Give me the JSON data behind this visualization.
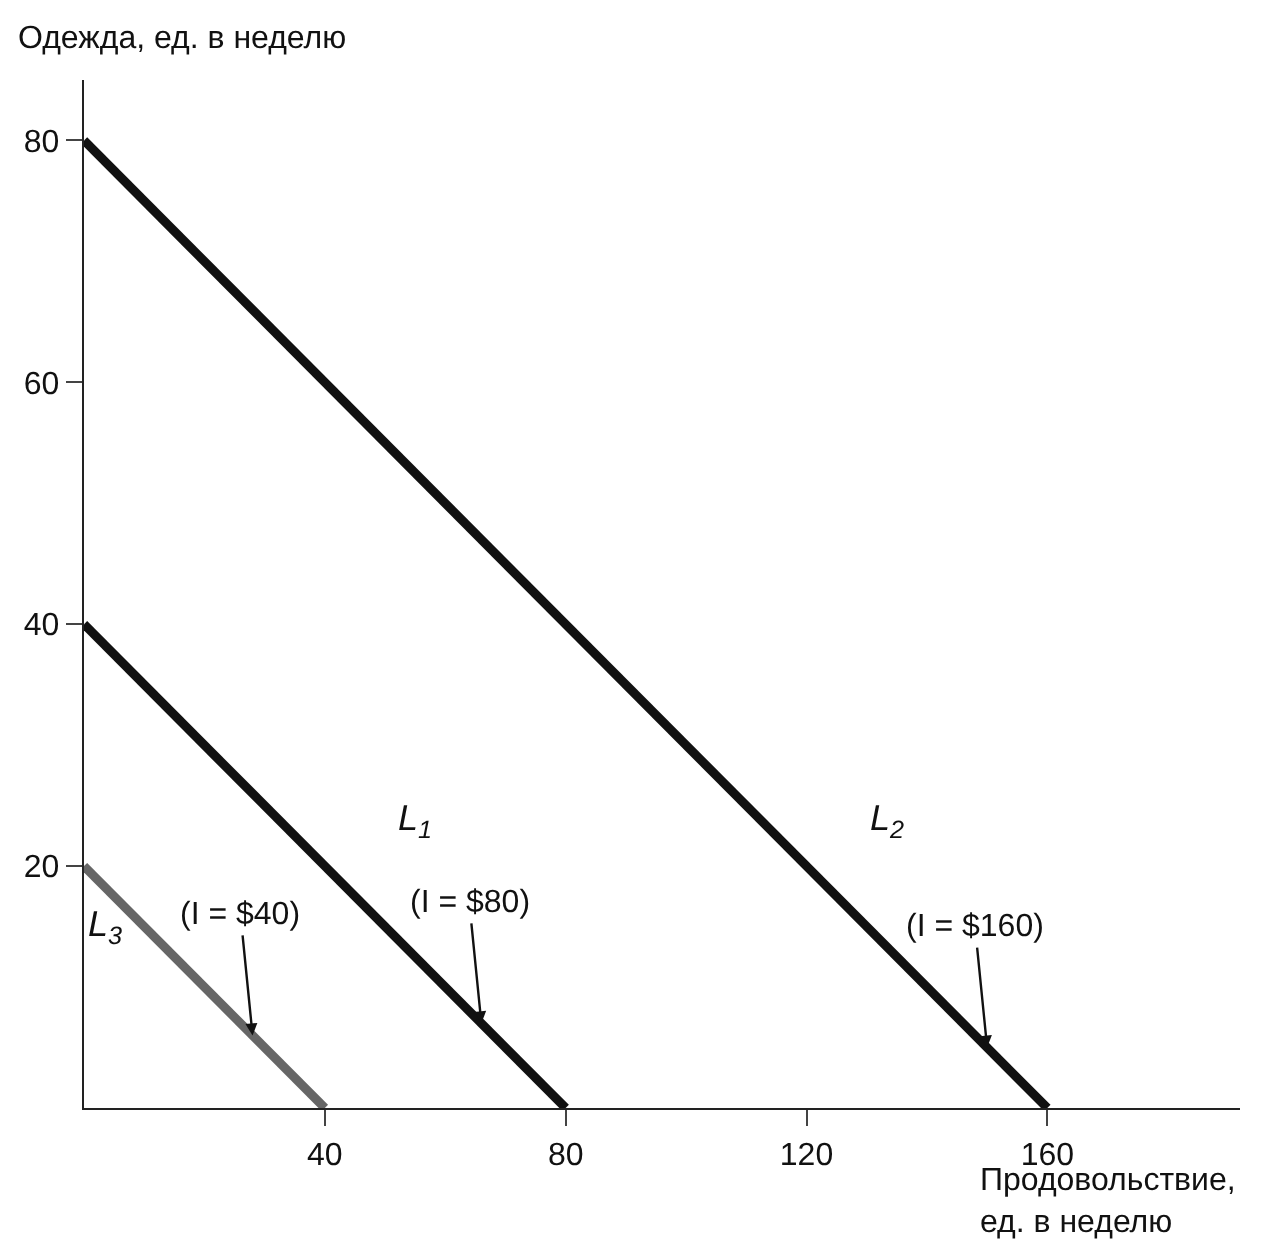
{
  "chart_data": {
    "type": "line",
    "xlabel": "Продовольствие,\nед. в неделю",
    "ylabel": "Одежда, ед. в неделю",
    "xlim": [
      0,
      192
    ],
    "ylim": [
      0,
      85
    ],
    "xticks": [
      40,
      80,
      120,
      160
    ],
    "yticks": [
      20,
      40,
      60,
      80
    ],
    "legend": false,
    "marker": "none",
    "line_style": "solid",
    "series": [
      {
        "name": "L$_{2}$",
        "color": "#111111",
        "x": [
          0,
          160
        ],
        "values": [
          80,
          0
        ]
      },
      {
        "name": "L$_{1}$",
        "color": "#111111",
        "x": [
          0,
          80
        ],
        "values": [
          40,
          0
        ]
      },
      {
        "name": "L$_{3}$",
        "color": "#666666",
        "x": [
          0,
          40
        ],
        "values": [
          20,
          0
        ]
      }
    ],
    "annotations": [
      {
        "text": "(I = $40)",
        "x": 28,
        "y": 6
      },
      {
        "text": "(I = $80)",
        "x": 66,
        "y": 7
      },
      {
        "text": "(I = $160)",
        "x": 150,
        "y": 5
      }
    ]
  }
}
